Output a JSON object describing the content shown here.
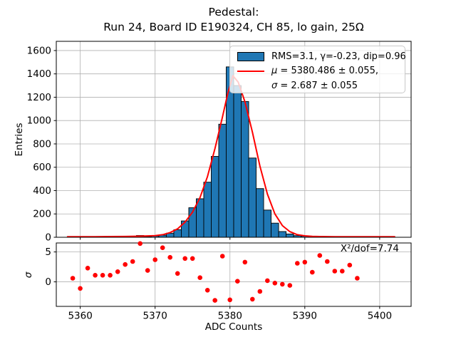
{
  "figure": {
    "title_line1": "Pedestal:",
    "title_line2": "Run 24, Board ID E190324, CH 85, lo gain, 25Ω"
  },
  "colors": {
    "background": "#ffffff",
    "bar_fill": "#1f77b4",
    "bar_edge": "#000000",
    "fit_line": "#ff0000",
    "residual_marker": "#ff0000",
    "grid": "#b0b0b0",
    "frame": "#000000",
    "legend_border": "#c9c9c9"
  },
  "legend": {
    "hist_label": "RMS=3.1, γ=-0.23, dip=0.96",
    "mu_symbol": "μ",
    "mu_rest": " = 5380.486 ± 0.055,",
    "sigma_symbol": "σ",
    "sigma_rest": " = 2.687 ± 0.055"
  },
  "chart_data": {
    "type": "histogram",
    "title": "Pedestal: Run 24, Board ID E190324, CH 85, lo gain, 25Ω",
    "legend_position": "upper right",
    "fit_params": {
      "rms": 3.1,
      "gamma": -0.23,
      "dip": 0.96,
      "mu": 5380.486,
      "mu_err": 0.055,
      "sigma": 2.687,
      "sigma_err": 0.055,
      "chi2_per_dof": 7.74
    },
    "main_panel": {
      "ylabel": "Entries",
      "xlim": [
        5356.8,
        5404.2
      ],
      "ylim": [
        0,
        1679
      ],
      "xticks": [
        5360,
        5370,
        5380,
        5390,
        5400
      ],
      "yticks": [
        0,
        200,
        400,
        600,
        800,
        1000,
        1200,
        1400,
        1600
      ],
      "grid": true,
      "histogram": {
        "bin_width": 1,
        "bin_centers": [
          5359,
          5360,
          5361,
          5362,
          5363,
          5364,
          5365,
          5366,
          5367,
          5368,
          5369,
          5370,
          5371,
          5372,
          5373,
          5374,
          5375,
          5376,
          5377,
          5378,
          5379,
          5380,
          5381,
          5382,
          5383,
          5384,
          5385,
          5386,
          5387,
          5388,
          5389,
          5390,
          5391,
          5392,
          5393,
          5394,
          5395,
          5396,
          5397
        ],
        "counts": [
          2,
          1,
          3,
          2,
          2,
          2,
          3,
          4,
          6,
          15,
          6,
          11,
          18,
          35,
          65,
          140,
          253,
          330,
          472,
          693,
          969,
          1460,
          1300,
          1163,
          679,
          417,
          233,
          121,
          49,
          28,
          14,
          10,
          6,
          8,
          5,
          4,
          2,
          2,
          2
        ]
      },
      "fit_curve": {
        "shape": "skew-normal",
        "points": [
          [
            5358.3,
            5
          ],
          [
            5360,
            5
          ],
          [
            5362,
            5
          ],
          [
            5364,
            6
          ],
          [
            5366,
            7
          ],
          [
            5368,
            9
          ],
          [
            5370,
            14
          ],
          [
            5371,
            22
          ],
          [
            5372,
            40
          ],
          [
            5373,
            72
          ],
          [
            5374,
            130
          ],
          [
            5375,
            215
          ],
          [
            5376,
            340
          ],
          [
            5377,
            520
          ],
          [
            5378,
            760
          ],
          [
            5379,
            1030
          ],
          [
            5379.7,
            1230
          ],
          [
            5380.4,
            1385
          ],
          [
            5381.1,
            1330
          ],
          [
            5382,
            1160
          ],
          [
            5383,
            900
          ],
          [
            5384,
            610
          ],
          [
            5385,
            370
          ],
          [
            5386,
            200
          ],
          [
            5387,
            100
          ],
          [
            5388,
            48
          ],
          [
            5389,
            22
          ],
          [
            5390,
            12
          ],
          [
            5391,
            8
          ],
          [
            5392,
            6
          ],
          [
            5394,
            5
          ],
          [
            5396,
            4
          ],
          [
            5398,
            4
          ],
          [
            5400,
            4
          ],
          [
            5402,
            4
          ]
        ]
      }
    },
    "residual_panel": {
      "ylabel": "σ",
      "xlabel": "ADC Counts",
      "ylim": [
        -4.1,
        6.5
      ],
      "yticks": [
        0,
        5
      ],
      "grid": true,
      "annotation": "X²/dof=7.74",
      "x": [
        5359,
        5360,
        5361,
        5362,
        5363,
        5364,
        5365,
        5366,
        5367,
        5368,
        5369,
        5370,
        5371,
        5372,
        5373,
        5374,
        5375,
        5376,
        5377,
        5378,
        5379,
        5380,
        5381,
        5382,
        5383,
        5384,
        5385,
        5386,
        5387,
        5388,
        5389,
        5390,
        5391,
        5392,
        5393,
        5394,
        5395,
        5396,
        5397
      ],
      "sigma": [
        0.6,
        -1.1,
        2.3,
        1.1,
        1.1,
        1.1,
        1.7,
        2.9,
        3.4,
        6.4,
        1.9,
        3.7,
        5.7,
        4.1,
        1.4,
        3.9,
        3.9,
        0.7,
        -1.4,
        -3.1,
        4.3,
        -3.0,
        0.1,
        3.3,
        -2.9,
        -1.6,
        0.2,
        -0.2,
        -0.4,
        -0.6,
        3.1,
        3.3,
        1.6,
        4.4,
        3.4,
        1.8,
        1.8,
        2.8,
        0.6
      ]
    }
  }
}
